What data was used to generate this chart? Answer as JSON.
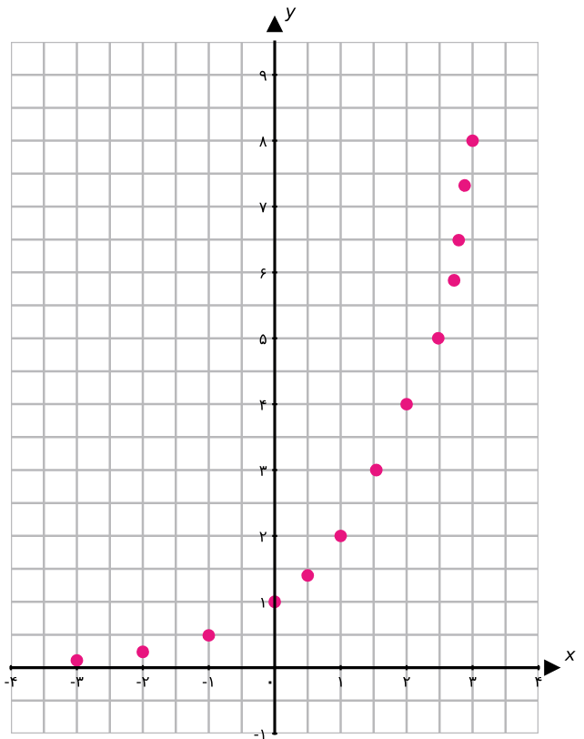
{
  "chart_data": {
    "type": "scatter",
    "xlabel": "x",
    "ylabel": "y",
    "x": [
      -3,
      -2,
      -1,
      0,
      0.5,
      1,
      1.54,
      2,
      2.48,
      2.72,
      2.79,
      2.88,
      3
    ],
    "series": [
      {
        "color": "#e8157f",
        "values": [
          0.11,
          0.24,
          0.49,
          1,
          1.4,
          2,
          3,
          4,
          5,
          5.88,
          6.49,
          7.32,
          8
        ]
      }
    ],
    "xlim": [
      -4,
      4
    ],
    "ylim": [
      -1,
      9.5
    ],
    "xticks": [
      {
        "value": -4,
        "label": "-۴"
      },
      {
        "value": -3,
        "label": "-۳"
      },
      {
        "value": -2,
        "label": "-۲"
      },
      {
        "value": -1,
        "label": "-۱"
      },
      {
        "value": 0,
        "label": "۰"
      },
      {
        "value": 1,
        "label": "۱"
      },
      {
        "value": 2,
        "label": "۲"
      },
      {
        "value": 3,
        "label": "۳"
      },
      {
        "value": 4,
        "label": "۴"
      }
    ],
    "yticks": [
      {
        "value": -1,
        "label": "-۱"
      },
      {
        "value": 1,
        "label": "۱"
      },
      {
        "value": 2,
        "label": "۲"
      },
      {
        "value": 3,
        "label": "۳"
      },
      {
        "value": 4,
        "label": "۴"
      },
      {
        "value": 5,
        "label": "۵"
      },
      {
        "value": 6,
        "label": "۶"
      },
      {
        "value": 7,
        "label": "۷"
      },
      {
        "value": 8,
        "label": "۸"
      },
      {
        "value": 9,
        "label": "۹"
      }
    ],
    "grid": true,
    "marker": "circle",
    "legend": false
  }
}
